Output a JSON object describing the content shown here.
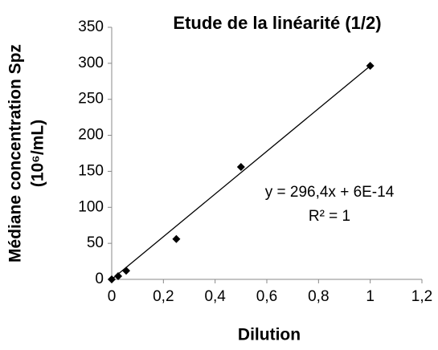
{
  "chart_data": {
    "type": "scatter",
    "title": "Etude de la linéarité (1/2)",
    "x_label": "Dilution",
    "y_label": [
      "Médiane concentration Spz",
      "(10⁶/mL)"
    ],
    "series": [
      {
        "name": "Spz",
        "color": "#000000",
        "x": [
          0,
          0.025,
          0.056,
          0.25,
          0.5,
          1
        ],
        "values": [
          0,
          4.5,
          12,
          56,
          156,
          296.5
        ]
      }
    ],
    "trendline": {
      "slope": 296.4,
      "intercept": 6e-14,
      "equation": "y = 296,4x + 6E-14",
      "r2": "R² = 1",
      "color": "#000000"
    },
    "xlim": [
      0,
      1.2
    ],
    "xticks": [
      0,
      {
        "value": 0.2,
        "label": "0,2"
      },
      {
        "value": 0.4,
        "label": "0,4"
      },
      {
        "value": 0.6,
        "label": "0,6"
      },
      {
        "value": 0.8,
        "label": "0,8"
      },
      1,
      {
        "value": 1.2,
        "label": "1,2"
      }
    ],
    "ylim": [
      0,
      350
    ],
    "yticks": [
      0,
      50,
      100,
      150,
      200,
      250,
      300,
      350
    ],
    "grid": false
  }
}
